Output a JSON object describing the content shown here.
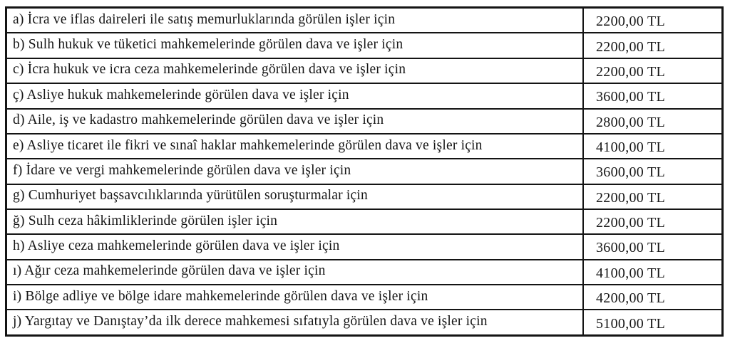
{
  "document": {
    "type": "scanned-tariff-table",
    "currency_suffix": "TL",
    "text_color": "#161616",
    "border_color": "#141414"
  },
  "table": {
    "rows": [
      {
        "label": "a) İcra ve iflas daireleri ile satış memurluklarında görülen işler için",
        "amount": "2200,00 TL"
      },
      {
        "label": "b) Sulh hukuk ve tüketici mahkemelerinde görülen dava ve işler için",
        "amount": "2200,00 TL"
      },
      {
        "label": "c) İcra hukuk ve icra ceza mahkemelerinde görülen dava ve işler için",
        "amount": "2200,00 TL"
      },
      {
        "label": "ç) Asliye hukuk mahkemelerinde görülen dava ve işler için",
        "amount": "3600,00 TL"
      },
      {
        "label": "d) Aile, iş ve kadastro mahkemelerinde görülen dava ve işler için",
        "amount": "2800,00 TL"
      },
      {
        "label": "e) Asliye ticaret ile fikri ve sınaî haklar mahkemelerinde görülen dava ve işler için",
        "amount": "4100,00 TL"
      },
      {
        "label": "f) İdare ve vergi mahkemelerinde görülen dava ve işler için",
        "amount": "3600,00 TL"
      },
      {
        "label": "g) Cumhuriyet başsavcılıklarında yürütülen soruşturmalar için",
        "amount": "2200,00 TL"
      },
      {
        "label": "ğ) Sulh ceza hâkimliklerinde görülen işler için",
        "amount": "2200,00 TL"
      },
      {
        "label": "h) Asliye ceza mahkemelerinde görülen dava ve işler için",
        "amount": "3600,00 TL"
      },
      {
        "label": "ı) Ağır ceza mahkemelerinde görülen dava ve işler için",
        "amount": "4100,00 TL"
      },
      {
        "label": "i) Bölge adliye ve bölge idare mahkemelerinde görülen dava ve işler için",
        "amount": "4200,00 TL"
      },
      {
        "label": "j) Yargıtay ve Danıştay’da ilk derece mahkemesi sıfatıyla görülen dava ve işler için",
        "amount": "5100,00 TL"
      }
    ]
  }
}
